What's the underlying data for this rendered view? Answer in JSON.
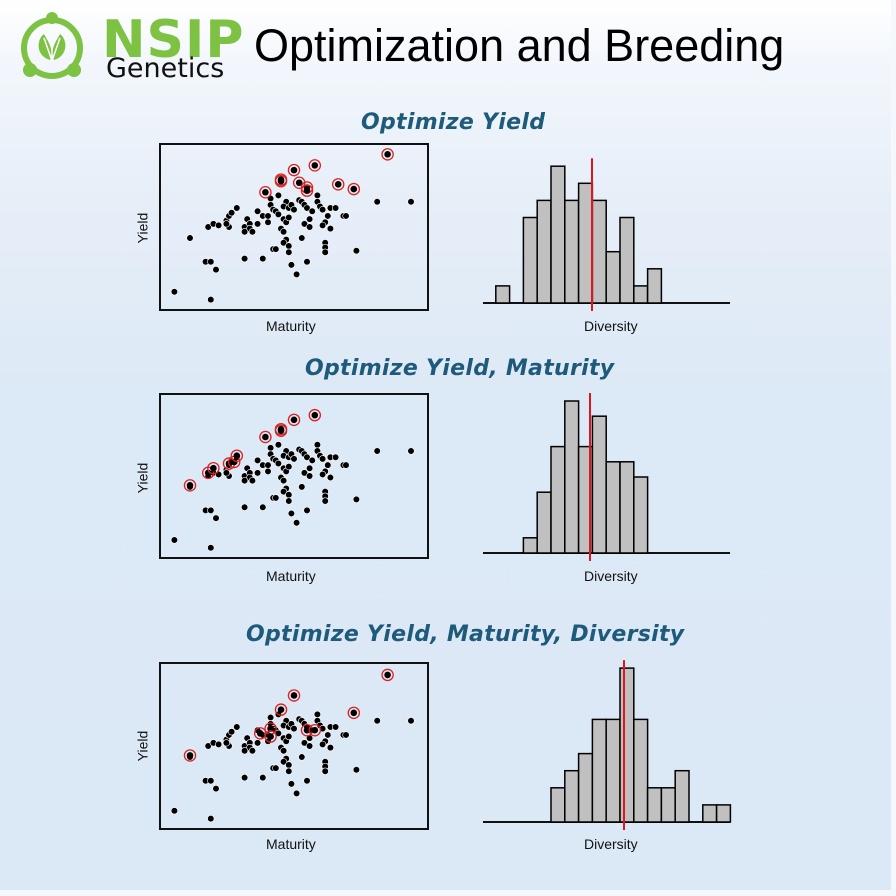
{
  "header": {
    "logo": {
      "brand_top": "NSIP",
      "brand_bottom": "Genetics",
      "brand_color": "#7dc242"
    },
    "title": "Optimization and Breeding"
  },
  "colors": {
    "section_title": "#1e5a7a",
    "highlight_ring": "#e02020",
    "mean_line": "#e0141e",
    "bar_fill": "#c0c0c0",
    "bar_stroke": "#000000",
    "point": "#000000"
  },
  "sections": [
    {
      "title": "Optimize Yield",
      "xlabel": "Maturity",
      "ylabel": "Yield",
      "hist_xlabel": "Diversity"
    },
    {
      "title": "Optimize Yield, Maturity",
      "xlabel": "Maturity",
      "ylabel": "Yield",
      "hist_xlabel": "Diversity"
    },
    {
      "title": "Optimize Yield, Maturity, Diversity",
      "xlabel": "Maturity",
      "ylabel": "Yield",
      "hist_xlabel": "Diversity"
    }
  ],
  "chart_data": [
    {
      "type": "scatter",
      "title": "Optimize Yield",
      "xlabel": "Maturity",
      "ylabel": "Yield",
      "note": "Points in plot-relative coords (0-1, origin bottom-left); highlighted = selected (red ring)",
      "points": "shared",
      "highlighted": [
        [
          0.86,
          0.96
        ],
        [
          0.39,
          0.72
        ],
        [
          0.45,
          0.8
        ],
        [
          0.45,
          0.79
        ],
        [
          0.5,
          0.86
        ],
        [
          0.58,
          0.89
        ],
        [
          0.52,
          0.78
        ],
        [
          0.55,
          0.75
        ],
        [
          0.55,
          0.73
        ],
        [
          0.67,
          0.77
        ],
        [
          0.73,
          0.74
        ]
      ]
    },
    {
      "type": "bar",
      "title": "Optimize Yield - Diversity distribution",
      "xlabel": "Diversity",
      "ylabel": "",
      "bins": 18,
      "values": [
        0,
        1,
        0,
        5,
        6,
        8,
        6,
        7,
        6,
        3,
        5,
        1,
        2,
        0,
        0,
        0,
        0,
        0
      ],
      "mean_marker_bin_position": 6.8
    },
    {
      "type": "scatter",
      "title": "Optimize Yield, Maturity",
      "xlabel": "Maturity",
      "ylabel": "Yield",
      "points": "shared",
      "highlighted": [
        [
          0.1,
          0.44
        ],
        [
          0.17,
          0.52
        ],
        [
          0.19,
          0.55
        ],
        [
          0.25,
          0.58
        ],
        [
          0.27,
          0.59
        ],
        [
          0.28,
          0.63
        ],
        [
          0.39,
          0.75
        ],
        [
          0.45,
          0.79
        ],
        [
          0.45,
          0.8
        ],
        [
          0.5,
          0.86
        ],
        [
          0.58,
          0.89
        ]
      ]
    },
    {
      "type": "bar",
      "title": "Optimize Yield, Maturity - Diversity distribution",
      "xlabel": "Diversity",
      "ylabel": "",
      "values": [
        0,
        0,
        0,
        1,
        4,
        7,
        10,
        7,
        9,
        6,
        6,
        5,
        0,
        0,
        0,
        0,
        0,
        0
      ],
      "mean_marker_bin_position": 6.7
    },
    {
      "type": "scatter",
      "title": "Optimize Yield, Maturity, Diversity",
      "xlabel": "Maturity",
      "ylabel": "Yield",
      "points": "shared",
      "highlighted": [
        [
          0.1,
          0.44
        ],
        [
          0.37,
          0.58
        ],
        [
          0.41,
          0.61
        ],
        [
          0.41,
          0.56
        ],
        [
          0.45,
          0.73
        ],
        [
          0.5,
          0.82
        ],
        [
          0.55,
          0.6
        ],
        [
          0.58,
          0.6
        ],
        [
          0.73,
          0.71
        ],
        [
          0.86,
          0.95
        ]
      ]
    },
    {
      "type": "bar",
      "title": "Optimize Yield, Maturity, Diversity - Diversity distribution",
      "xlabel": "Diversity",
      "ylabel": "",
      "values": [
        0,
        0,
        0,
        0,
        0,
        2,
        3,
        4,
        6,
        6,
        9,
        6,
        2,
        2,
        3,
        0,
        1,
        1
      ],
      "mean_marker_bin_position": 10.5
    }
  ],
  "shared_points": [
    [
      0.04,
      0.09
    ],
    [
      0.18,
      0.04
    ],
    [
      0.1,
      0.43
    ],
    [
      0.16,
      0.28
    ],
    [
      0.18,
      0.28
    ],
    [
      0.2,
      0.23
    ],
    [
      0.17,
      0.5
    ],
    [
      0.19,
      0.52
    ],
    [
      0.21,
      0.51
    ],
    [
      0.24,
      0.54
    ],
    [
      0.25,
      0.57
    ],
    [
      0.26,
      0.59
    ],
    [
      0.28,
      0.62
    ],
    [
      0.25,
      0.5
    ],
    [
      0.24,
      0.52
    ],
    [
      0.32,
      0.55
    ],
    [
      0.31,
      0.5
    ],
    [
      0.33,
      0.52
    ],
    [
      0.33,
      0.49
    ],
    [
      0.34,
      0.47
    ],
    [
      0.31,
      0.47
    ],
    [
      0.36,
      0.52
    ],
    [
      0.38,
      0.57
    ],
    [
      0.4,
      0.53
    ],
    [
      0.41,
      0.68
    ],
    [
      0.41,
      0.64
    ],
    [
      0.42,
      0.61
    ],
    [
      0.43,
      0.6
    ],
    [
      0.44,
      0.58
    ],
    [
      0.47,
      0.66
    ],
    [
      0.46,
      0.63
    ],
    [
      0.48,
      0.62
    ],
    [
      0.49,
      0.64
    ],
    [
      0.5,
      0.61
    ],
    [
      0.46,
      0.55
    ],
    [
      0.47,
      0.53
    ],
    [
      0.48,
      0.56
    ],
    [
      0.45,
      0.49
    ],
    [
      0.46,
      0.47
    ],
    [
      0.47,
      0.42
    ],
    [
      0.46,
      0.4
    ],
    [
      0.48,
      0.38
    ],
    [
      0.52,
      0.67
    ],
    [
      0.53,
      0.66
    ],
    [
      0.54,
      0.64
    ],
    [
      0.55,
      0.62
    ],
    [
      0.57,
      0.6
    ],
    [
      0.56,
      0.55
    ],
    [
      0.54,
      0.52
    ],
    [
      0.56,
      0.5
    ],
    [
      0.59,
      0.7
    ],
    [
      0.59,
      0.66
    ],
    [
      0.6,
      0.63
    ],
    [
      0.61,
      0.61
    ],
    [
      0.63,
      0.57
    ],
    [
      0.62,
      0.53
    ],
    [
      0.61,
      0.51
    ],
    [
      0.64,
      0.49
    ],
    [
      0.62,
      0.4
    ],
    [
      0.62,
      0.37
    ],
    [
      0.62,
      0.34
    ],
    [
      0.64,
      0.62
    ],
    [
      0.66,
      0.62
    ],
    [
      0.69,
      0.57
    ],
    [
      0.7,
      0.57
    ],
    [
      0.53,
      0.43
    ],
    [
      0.42,
      0.36
    ],
    [
      0.48,
      0.34
    ],
    [
      0.43,
      0.36
    ],
    [
      0.55,
      0.28
    ],
    [
      0.49,
      0.26
    ],
    [
      0.38,
      0.3
    ],
    [
      0.31,
      0.3
    ],
    [
      0.51,
      0.2
    ],
    [
      0.74,
      0.35
    ],
    [
      0.82,
      0.66
    ],
    [
      0.95,
      0.66
    ],
    [
      0.44,
      0.7
    ],
    [
      0.4,
      0.57
    ],
    [
      0.36,
      0.6
    ]
  ]
}
